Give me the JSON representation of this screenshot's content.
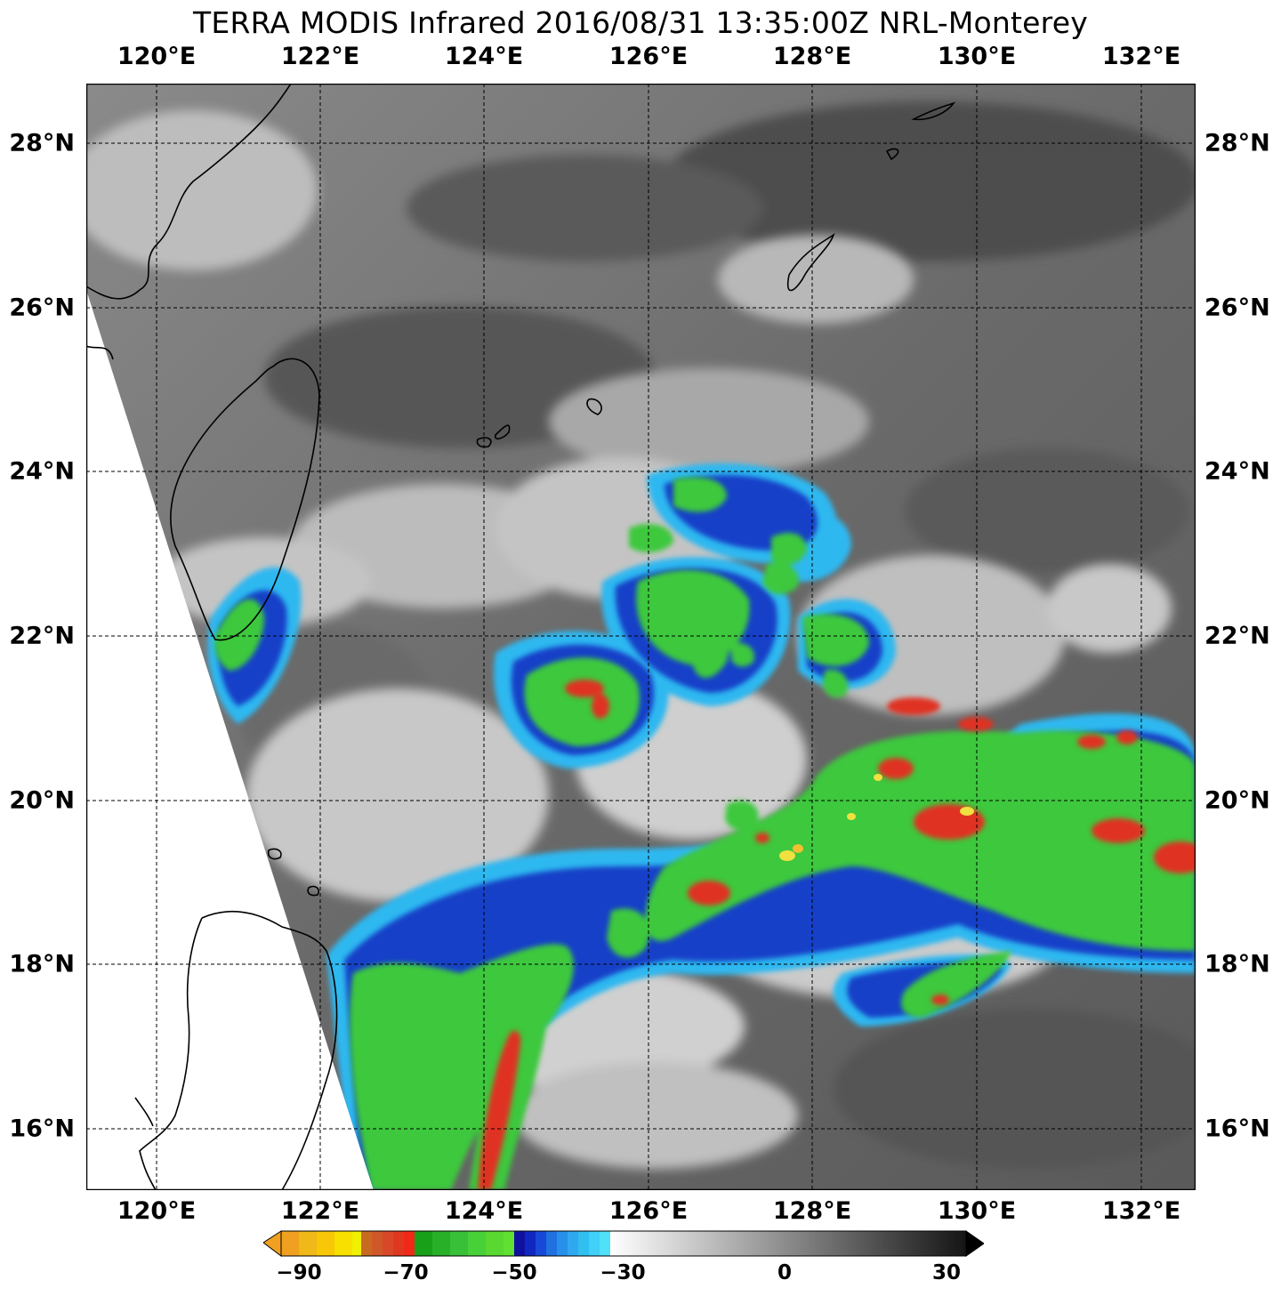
{
  "title": "TERRA MODIS Infrared 2016/08/31 13:35:00Z NRL-Monterey",
  "longitude_labels": [
    "120°E",
    "122°E",
    "124°E",
    "126°E",
    "128°E",
    "130°E",
    "132°E"
  ],
  "latitude_labels": [
    "28°N",
    "26°N",
    "24°N",
    "22°N",
    "20°N",
    "18°N",
    "16°N"
  ],
  "colorbar": {
    "tick_labels": [
      "−90",
      "−70",
      "−50",
      "−30",
      "0",
      "30"
    ],
    "range": [
      -90,
      30
    ]
  },
  "colors": {
    "background_cloudfree": "#5e5e5e",
    "cirrus_light": "#d8d8d8",
    "cold_cyan": "#2fb8f0",
    "cold_blue": "#1840c8",
    "deep_green": "#3cc83c",
    "very_cold_red": "#e03020",
    "extreme_yellow": "#f0e040",
    "orange_arrow": "#f0a020",
    "black_arrow": "#000000"
  }
}
